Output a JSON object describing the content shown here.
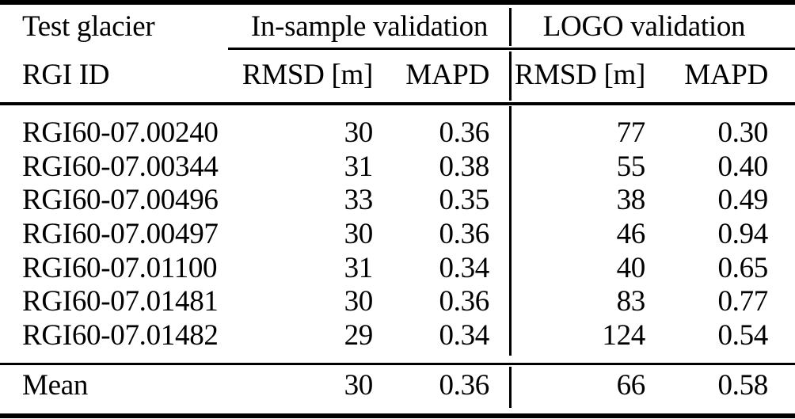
{
  "header": {
    "col1_title": "Test glacier",
    "col1_subtitle": "RGI ID",
    "group1_title": "In-sample validation",
    "group2_title": "LOGO validation",
    "sub_rmsd_label": "RMSD [m]",
    "sub_mapd_label": "MAPD"
  },
  "table": {
    "rows": [
      {
        "rgi_id": "RGI60-07.00240",
        "in_rmsd": "30",
        "in_mapd": "0.36",
        "logo_rmsd": "77",
        "logo_mapd": "0.30"
      },
      {
        "rgi_id": "RGI60-07.00344",
        "in_rmsd": "31",
        "in_mapd": "0.38",
        "logo_rmsd": "55",
        "logo_mapd": "0.40"
      },
      {
        "rgi_id": "RGI60-07.00496",
        "in_rmsd": "33",
        "in_mapd": "0.35",
        "logo_rmsd": "38",
        "logo_mapd": "0.49"
      },
      {
        "rgi_id": "RGI60-07.00497",
        "in_rmsd": "30",
        "in_mapd": "0.36",
        "logo_rmsd": "46",
        "logo_mapd": "0.94"
      },
      {
        "rgi_id": "RGI60-07.01100",
        "in_rmsd": "31",
        "in_mapd": "0.34",
        "logo_rmsd": "40",
        "logo_mapd": "0.65"
      },
      {
        "rgi_id": "RGI60-07.01481",
        "in_rmsd": "30",
        "in_mapd": "0.36",
        "logo_rmsd": "83",
        "logo_mapd": "0.77"
      },
      {
        "rgi_id": "RGI60-07.01482",
        "in_rmsd": "29",
        "in_mapd": "0.34",
        "logo_rmsd": "124",
        "logo_mapd": "0.54"
      }
    ],
    "summary": {
      "label": "Mean",
      "in_rmsd": "30",
      "in_mapd": "0.36",
      "logo_rmsd": "66",
      "logo_mapd": "0.58"
    }
  },
  "colors": {
    "text": "#000000",
    "background": "#ffffff",
    "rule": "#000000"
  }
}
